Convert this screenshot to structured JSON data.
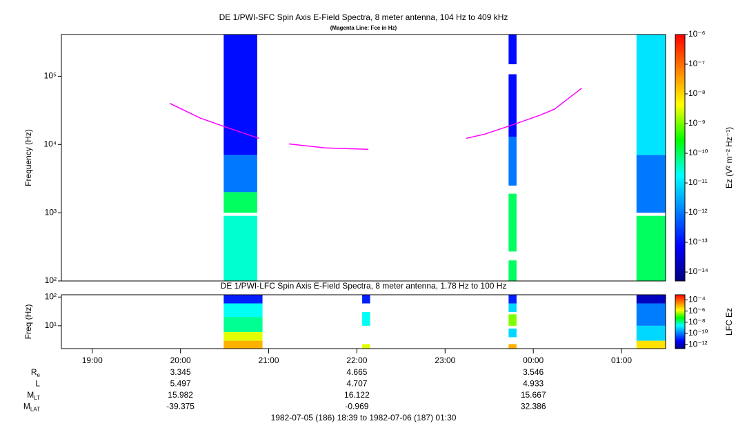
{
  "chart_data": [
    {
      "type": "spectrogram",
      "title": "DE 1/PWI-SFC  Spin Axis E-Field Spectra, 8 meter antenna, 104 Hz to 409 kHz",
      "subtitle": "(Magenta Line: Fce in Hz)",
      "y_label": "Frequency (Hz)",
      "colorbar_label": "Ez (V² m⁻² Hz⁻¹)",
      "xlim": [
        18.65,
        25.5
      ],
      "ylim": [
        100,
        409000
      ],
      "y_log": true,
      "yticks": [
        {
          "value": 100,
          "label": "10²"
        },
        {
          "value": 1000,
          "label": "10³"
        },
        {
          "value": 10000,
          "label": "10⁴"
        },
        {
          "value": 100000,
          "label": "10⁵"
        }
      ],
      "zlim": [
        5e-15,
        1e-06
      ],
      "z_log": true,
      "zticks": [
        {
          "value": 1e-06,
          "label": "10⁻⁶"
        },
        {
          "value": 1e-07,
          "label": "10⁻⁷"
        },
        {
          "value": 1e-08,
          "label": "10⁻⁸"
        },
        {
          "value": 1e-09,
          "label": "10⁻⁹"
        },
        {
          "value": 1e-10,
          "label": "10⁻¹⁰"
        },
        {
          "value": 1e-11,
          "label": "10⁻¹¹"
        },
        {
          "value": 1e-12,
          "label": "10⁻¹²"
        },
        {
          "value": 1e-13,
          "label": "10⁻¹³"
        },
        {
          "value": 1e-14,
          "label": "10⁻¹⁴"
        }
      ],
      "colormap": [
        "#00007f",
        "#0000ff",
        "#0080ff",
        "#00ffff",
        "#00ff00",
        "#ffff00",
        "#ff8000",
        "#ff0000"
      ],
      "segments": [
        {
          "start": 20.49,
          "end": 20.87,
          "bands": [
            {
              "fmin": 7000,
              "fmax": 409000,
              "z": 1e-13
            },
            {
              "fmin": 2000,
              "fmax": 7000,
              "z": 1e-12
            },
            {
              "fmin": 1000,
              "fmax": 2000,
              "z": 1e-10
            },
            {
              "fmin": 100,
              "fmax": 900,
              "z": 3e-11
            }
          ]
        },
        {
          "start": 23.72,
          "end": 23.81,
          "bands": [
            {
              "fmin": 150000,
              "fmax": 409000,
              "z": 1e-13
            },
            {
              "fmin": 13000,
              "fmax": 107000,
              "z": 1e-13
            },
            {
              "fmin": 2500,
              "fmax": 13000,
              "z": 1e-12
            },
            {
              "fmin": 270,
              "fmax": 1900,
              "z": 1e-10
            },
            {
              "fmin": 100,
              "fmax": 200,
              "z": 1e-10
            }
          ]
        },
        {
          "start": 25.17,
          "end": 25.5,
          "bands": [
            {
              "fmin": 7000,
              "fmax": 409000,
              "z": 1e-11
            },
            {
              "fmin": 1000,
              "fmax": 7000,
              "z": 1e-12
            },
            {
              "fmin": 100,
              "fmax": 900,
              "z": 1e-10
            }
          ]
        }
      ],
      "line": {
        "color": "#ff00ff",
        "x": [
          19.88,
          20.22,
          20.49,
          20.89,
          21.05,
          21.23,
          21.64,
          22.13,
          22.7,
          23.24,
          23.45,
          23.76,
          24.08,
          24.24,
          24.55
        ],
        "values": [
          40000,
          24500,
          18400,
          12300,
          null,
          10200,
          8900,
          8500,
          null,
          12300,
          14200,
          19300,
          27000,
          33000,
          67000
        ]
      }
    },
    {
      "type": "spectrogram",
      "title": "DE 1/PWI-LFC  Spin Axis E-Field Spectra, 8 meter antenna, 1.78 Hz to 100 Hz",
      "y_label": "Freq (Hz)",
      "colorbar_label": "LFC Ez",
      "xlim": [
        18.65,
        25.5
      ],
      "xticks": [
        {
          "value": 19,
          "label": "19:00"
        },
        {
          "value": 20,
          "label": "20:00"
        },
        {
          "value": 21,
          "label": "21:00"
        },
        {
          "value": 22,
          "label": "22:00"
        },
        {
          "value": 23,
          "label": "23:00"
        },
        {
          "value": 24,
          "label": "00:00"
        },
        {
          "value": 25,
          "label": "01:00"
        }
      ],
      "ylim": [
        1.6,
        120
      ],
      "y_log": true,
      "yticks": [
        {
          "value": 10,
          "label": "10¹"
        },
        {
          "value": 100,
          "label": "10²"
        }
      ],
      "zlim": [
        2e-13,
        0.0008
      ],
      "z_log": true,
      "zticks": [
        {
          "value": 0.0001,
          "label": "10⁻⁴"
        },
        {
          "value": 1e-06,
          "label": "10⁻⁶"
        },
        {
          "value": 1e-08,
          "label": "10⁻⁸"
        },
        {
          "value": 1e-10,
          "label": "10⁻¹⁰"
        },
        {
          "value": 1e-12,
          "label": "10⁻¹²"
        }
      ],
      "colormap": [
        "#00007f",
        "#0000ff",
        "#0080ff",
        "#00ffff",
        "#00ff00",
        "#ffff00",
        "#ff8000",
        "#ff0000"
      ],
      "segments": [
        {
          "start": 20.49,
          "end": 20.93,
          "bands": [
            {
              "fmin": 60,
              "fmax": 120,
              "z": 1e-11
            },
            {
              "fmin": 20,
              "fmax": 60,
              "z": 3e-09
            },
            {
              "fmin": 6,
              "fmax": 20,
              "z": 1e-08
            },
            {
              "fmin": 3,
              "fmax": 6,
              "z": 1e-06
            },
            {
              "fmin": 1.6,
              "fmax": 3,
              "z": 1e-05
            }
          ]
        },
        {
          "start": 22.06,
          "end": 22.15,
          "bands": [
            {
              "fmin": 60,
              "fmax": 120,
              "z": 1e-11
            },
            {
              "fmin": 10,
              "fmax": 30,
              "z": 3e-09
            },
            {
              "fmin": 1.6,
              "fmax": 2.3,
              "z": 1e-06
            }
          ]
        },
        {
          "start": 23.72,
          "end": 23.81,
          "bands": [
            {
              "fmin": 60,
              "fmax": 120,
              "z": 1e-11
            },
            {
              "fmin": 30,
              "fmax": 60,
              "z": 1e-09
            },
            {
              "fmin": 10,
              "fmax": 25,
              "z": 3e-07
            },
            {
              "fmin": 4,
              "fmax": 8,
              "z": 1e-09
            },
            {
              "fmin": 1.6,
              "fmax": 2.3,
              "z": 1e-05
            }
          ]
        },
        {
          "start": 25.17,
          "end": 25.5,
          "bands": [
            {
              "fmin": 60,
              "fmax": 120,
              "z": 1e-12
            },
            {
              "fmin": 10,
              "fmax": 60,
              "z": 1e-10
            },
            {
              "fmin": 3,
              "fmax": 10,
              "z": 1e-09
            },
            {
              "fmin": 1.6,
              "fmax": 3,
              "z": 3e-06
            }
          ]
        }
      ]
    }
  ],
  "ephemeris": {
    "at": [
      20,
      22,
      24
    ],
    "rows": [
      {
        "label": "R",
        "sub": "e",
        "values": [
          3.345,
          4.665,
          3.546
        ]
      },
      {
        "label": "L",
        "sub": "",
        "values": [
          5.497,
          4.707,
          4.933
        ]
      },
      {
        "label": "M",
        "sub": "LT",
        "values": [
          15.982,
          16.122,
          15.667
        ]
      },
      {
        "label": "M",
        "sub": "LAT",
        "values": [
          -39.375,
          -0.969,
          32.386
        ]
      }
    ]
  },
  "footer": "1982-07-05 (186) 18:39 to 1982-07-06 (187) 01:30"
}
